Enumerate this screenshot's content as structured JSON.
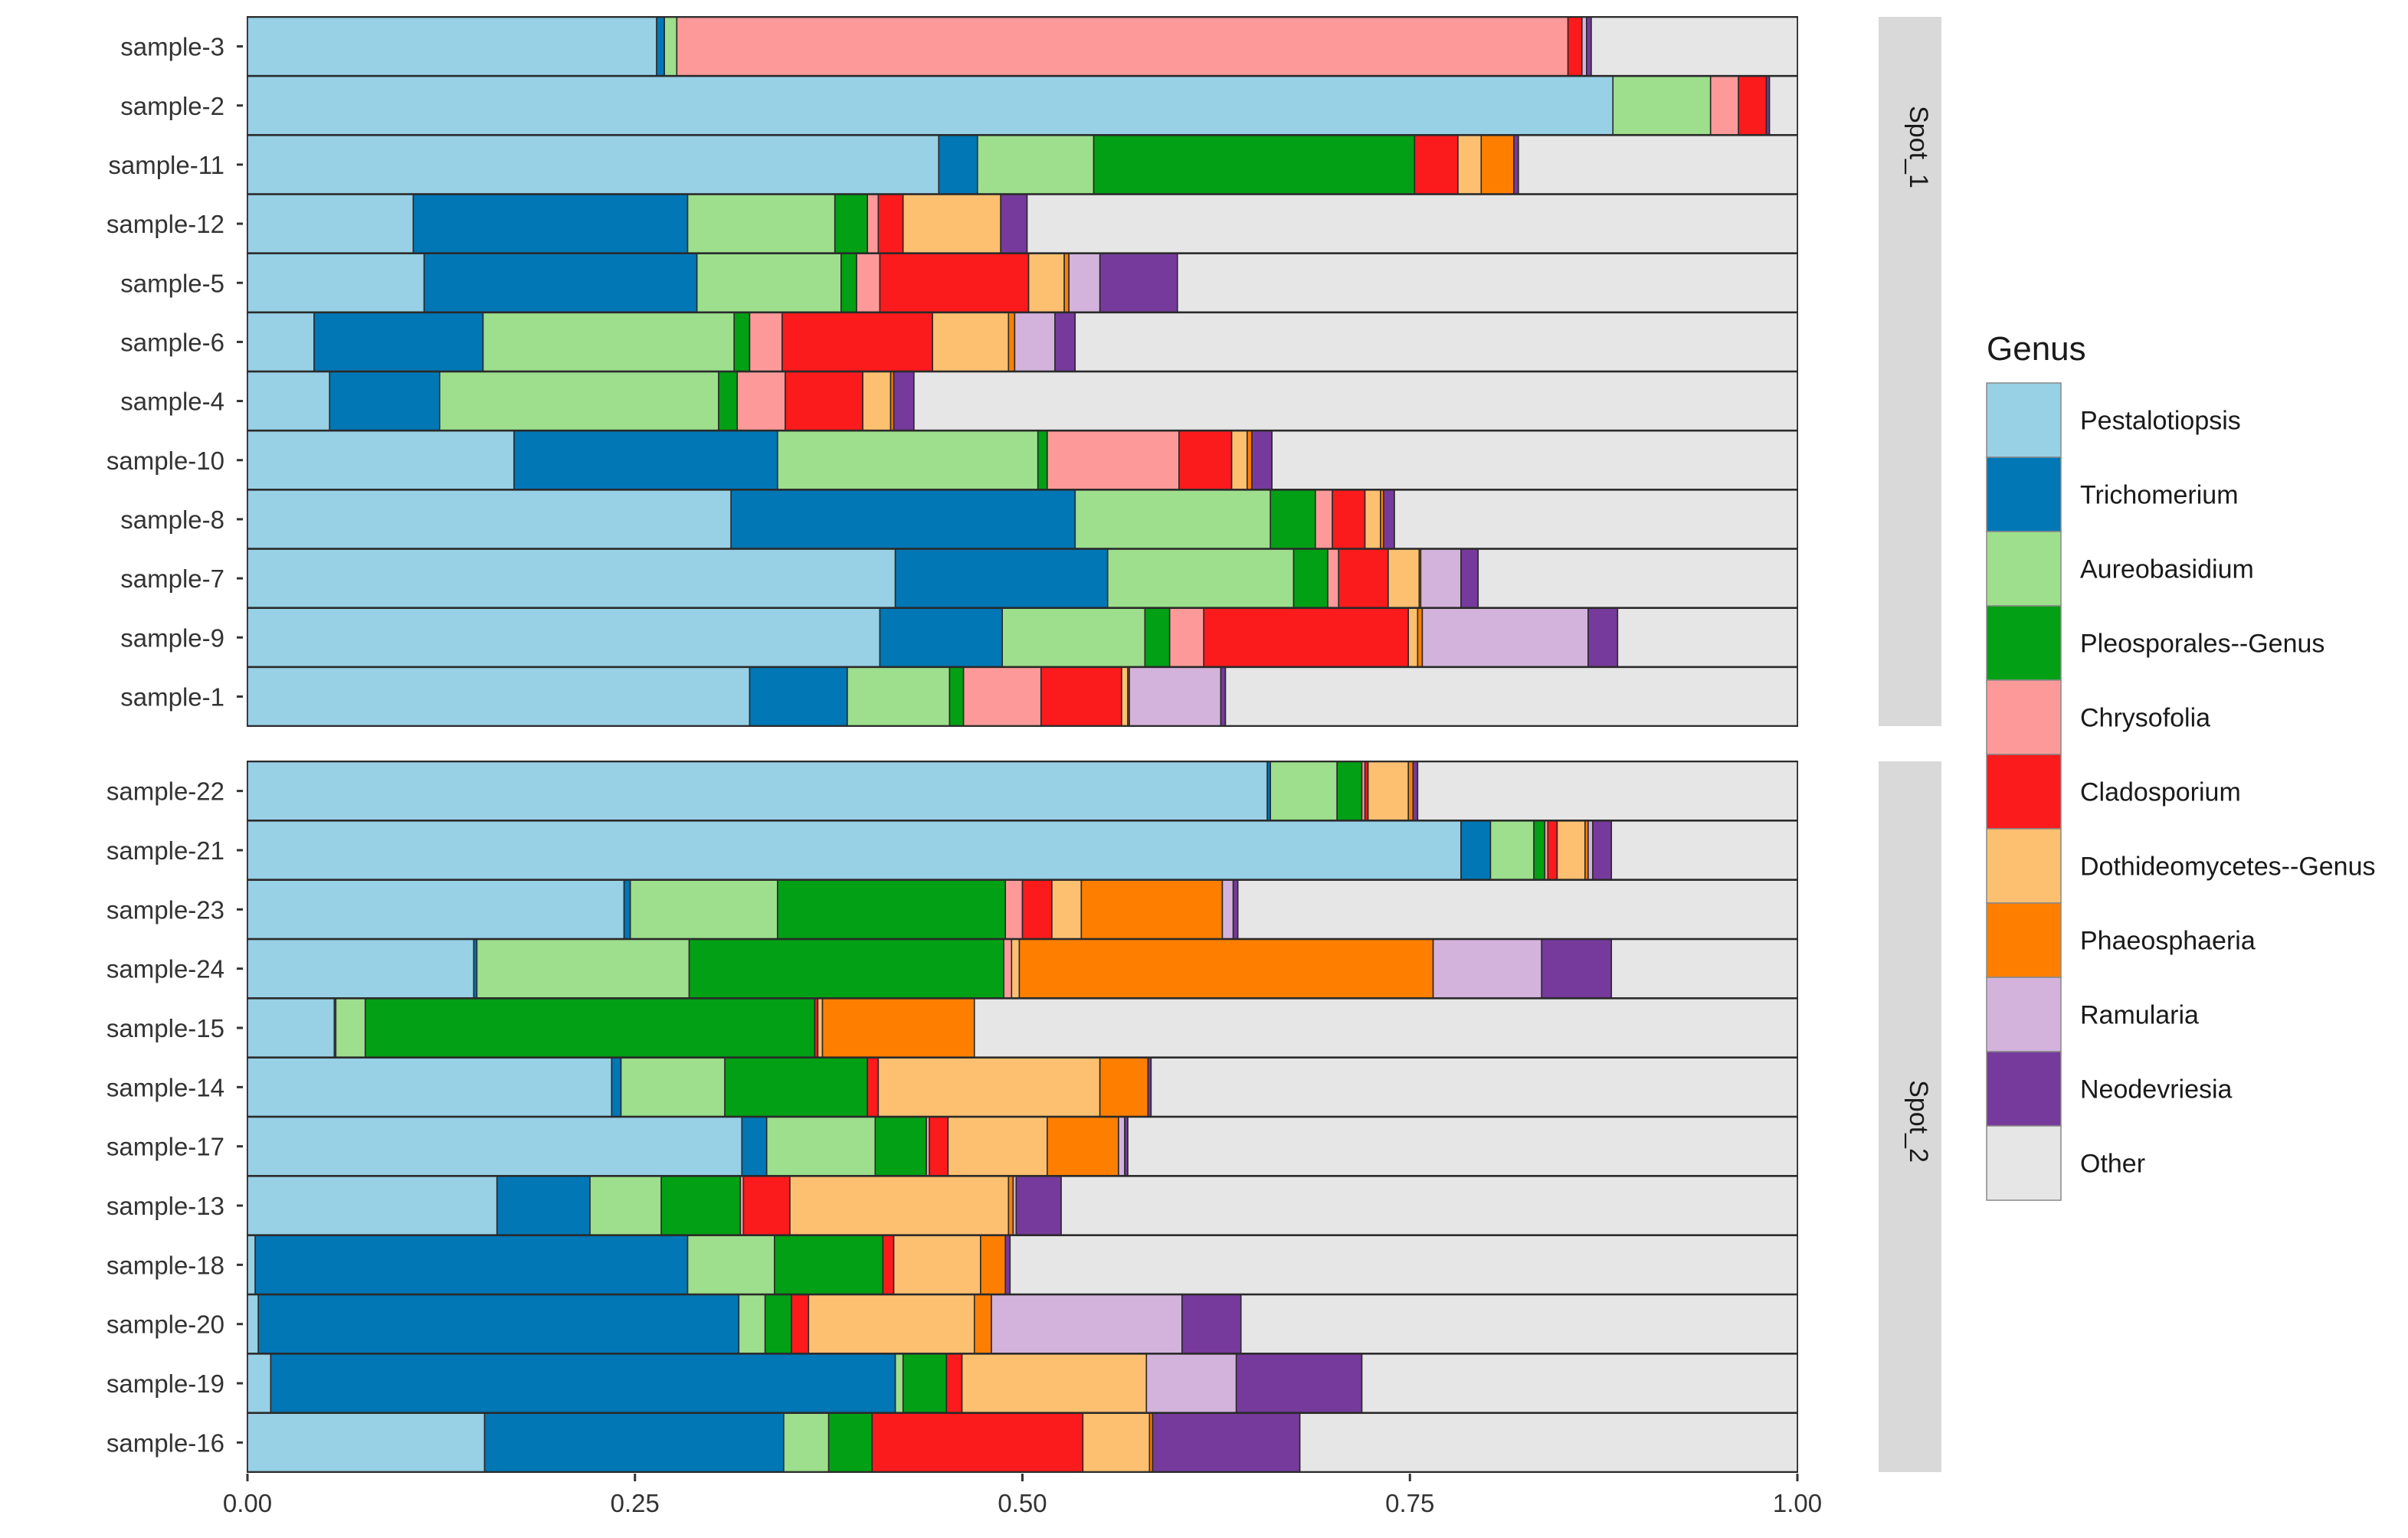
{
  "chart_data": {
    "type": "bar",
    "orientation": "horizontal",
    "stacked": true,
    "x_ticks": [
      "0.00",
      "0.25",
      "0.50",
      "0.75",
      "1.00"
    ],
    "xlim": [
      0,
      1
    ],
    "legend": {
      "title": "Genus",
      "placement": "right",
      "entries": [
        {
          "name": "Pestalotiopsis",
          "color": "#98d0e6"
        },
        {
          "name": "Trichomerium",
          "color": "#0177b6"
        },
        {
          "name": "Aureobasidium",
          "color": "#9ddf8c"
        },
        {
          "name": "Pleosporales--Genus",
          "color": "#02a014"
        },
        {
          "name": "Chrysofolia",
          "color": "#fd9a99"
        },
        {
          "name": "Cladosporium",
          "color": "#fb1a1c"
        },
        {
          "name": "Dothideomycetes--Genus",
          "color": "#fdc070"
        },
        {
          "name": "Phaeosphaeria",
          "color": "#fe7f00"
        },
        {
          "name": "Ramularia",
          "color": "#d3b3dc"
        },
        {
          "name": "Neodevriesia",
          "color": "#763a9c"
        },
        {
          "name": "Other",
          "color": "#e6e6e6"
        }
      ]
    },
    "panels": [
      {
        "label": "Spot_1",
        "samples": [
          {
            "name": "sample-3",
            "values": [
              0.264,
              0.005,
              0.008,
              0.0,
              0.575,
              0.009,
              0.0,
              0.0,
              0.003,
              0.003,
              0.133
            ]
          },
          {
            "name": "sample-2",
            "values": [
              0.881,
              0.0,
              0.063,
              0.0,
              0.018,
              0.018,
              0.0,
              0.0,
              0.0,
              0.002,
              0.018
            ]
          },
          {
            "name": "sample-11",
            "values": [
              0.446,
              0.025,
              0.075,
              0.207,
              0.0,
              0.028,
              0.015,
              0.021,
              0.0,
              0.003,
              0.18
            ]
          },
          {
            "name": "sample-12",
            "values": [
              0.107,
              0.177,
              0.095,
              0.021,
              0.007,
              0.016,
              0.063,
              0.0,
              0.0,
              0.017,
              0.497
            ]
          },
          {
            "name": "sample-5",
            "values": [
              0.114,
              0.176,
              0.093,
              0.01,
              0.015,
              0.096,
              0.023,
              0.003,
              0.02,
              0.05,
              0.4
            ]
          },
          {
            "name": "sample-6",
            "values": [
              0.043,
              0.109,
              0.162,
              0.01,
              0.021,
              0.097,
              0.049,
              0.004,
              0.026,
              0.013,
              0.466
            ]
          },
          {
            "name": "sample-4",
            "values": [
              0.053,
              0.071,
              0.18,
              0.012,
              0.031,
              0.05,
              0.018,
              0.002,
              0.0,
              0.013,
              0.57
            ]
          },
          {
            "name": "sample-10",
            "values": [
              0.172,
              0.17,
              0.168,
              0.006,
              0.085,
              0.034,
              0.01,
              0.003,
              0.0,
              0.013,
              0.339
            ]
          },
          {
            "name": "sample-8",
            "values": [
              0.312,
              0.222,
              0.126,
              0.029,
              0.011,
              0.021,
              0.01,
              0.002,
              0.0,
              0.007,
              0.26
            ]
          },
          {
            "name": "sample-7",
            "values": [
              0.418,
              0.137,
              0.12,
              0.022,
              0.007,
              0.032,
              0.02,
              0.001,
              0.026,
              0.011,
              0.206
            ]
          },
          {
            "name": "sample-9",
            "values": [
              0.408,
              0.079,
              0.092,
              0.016,
              0.022,
              0.132,
              0.006,
              0.003,
              0.107,
              0.019,
              0.116
            ]
          },
          {
            "name": "sample-1",
            "values": [
              0.324,
              0.063,
              0.066,
              0.009,
              0.05,
              0.052,
              0.004,
              0.001,
              0.059,
              0.003,
              0.369
            ]
          }
        ]
      },
      {
        "label": "Spot_2",
        "samples": [
          {
            "name": "sample-22",
            "values": [
              0.658,
              0.002,
              0.043,
              0.016,
              0.002,
              0.002,
              0.026,
              0.003,
              0.0,
              0.003,
              0.245
            ]
          },
          {
            "name": "sample-21",
            "values": [
              0.783,
              0.019,
              0.028,
              0.007,
              0.002,
              0.006,
              0.018,
              0.002,
              0.003,
              0.012,
              0.12
            ]
          },
          {
            "name": "sample-23",
            "values": [
              0.243,
              0.004,
              0.095,
              0.147,
              0.011,
              0.019,
              0.019,
              0.091,
              0.007,
              0.003,
              0.361
            ]
          },
          {
            "name": "sample-24",
            "values": [
              0.146,
              0.002,
              0.137,
              0.203,
              0.005,
              0.0,
              0.005,
              0.267,
              0.07,
              0.045,
              0.12
            ]
          },
          {
            "name": "sample-15",
            "values": [
              0.056,
              0.001,
              0.019,
              0.29,
              0.0,
              0.002,
              0.003,
              0.098,
              0.0,
              0.0,
              0.531
            ]
          },
          {
            "name": "sample-14",
            "values": [
              0.235,
              0.006,
              0.067,
              0.092,
              0.0,
              0.007,
              0.143,
              0.031,
              0.0,
              0.002,
              0.417
            ]
          },
          {
            "name": "sample-17",
            "values": [
              0.319,
              0.016,
              0.07,
              0.033,
              0.002,
              0.012,
              0.064,
              0.046,
              0.004,
              0.002,
              0.432
            ]
          },
          {
            "name": "sample-13",
            "values": [
              0.161,
              0.06,
              0.046,
              0.051,
              0.002,
              0.03,
              0.141,
              0.003,
              0.002,
              0.029,
              0.475
            ]
          },
          {
            "name": "sample-18",
            "values": [
              0.005,
              0.279,
              0.056,
              0.07,
              0.0,
              0.007,
              0.056,
              0.016,
              0.0,
              0.003,
              0.508
            ]
          },
          {
            "name": "sample-20",
            "values": [
              0.007,
              0.31,
              0.017,
              0.017,
              0.0,
              0.011,
              0.107,
              0.011,
              0.123,
              0.038,
              0.359
            ]
          },
          {
            "name": "sample-19",
            "values": [
              0.015,
              0.403,
              0.005,
              0.028,
              0.0,
              0.01,
              0.119,
              0.0,
              0.058,
              0.081,
              0.281
            ]
          },
          {
            "name": "sample-16",
            "values": [
              0.153,
              0.193,
              0.029,
              0.028,
              0.0,
              0.136,
              0.043,
              0.002,
              0.0,
              0.095,
              0.321
            ]
          }
        ]
      }
    ]
  }
}
